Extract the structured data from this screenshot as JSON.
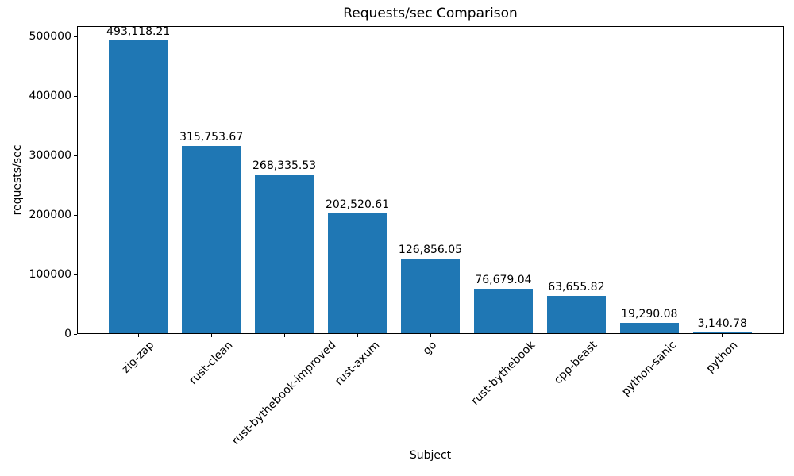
{
  "chart_data": {
    "type": "bar",
    "title": "Requests/sec Comparison",
    "xlabel": "Subject",
    "ylabel": "requests/sec",
    "categories": [
      "zig-zap",
      "rust-clean",
      "rust-bythebook-improved",
      "rust-axum",
      "go",
      "rust-bythebook",
      "cpp-beast",
      "python-sanic",
      "python"
    ],
    "values": [
      493118.21,
      315753.67,
      268335.53,
      202520.61,
      126856.05,
      76679.04,
      63655.82,
      19290.08,
      3140.78
    ],
    "value_labels": [
      "493,118.21",
      "315,753.67",
      "268,335.53",
      "202,520.61",
      "126,856.05",
      "76,679.04",
      "63,655.82",
      "19,290.08",
      "3,140.78"
    ],
    "yticks": [
      0,
      100000,
      200000,
      300000,
      400000,
      500000
    ],
    "ylim": [
      0,
      517774
    ],
    "xlim": [
      -0.84,
      8.84
    ],
    "bar_width": 0.8,
    "bar_color": "#1f77b4",
    "grid": false,
    "legend": null,
    "x_tick_label_rotation_deg": 45
  },
  "colors": {
    "background": "#ffffff",
    "axis": "#000000",
    "text": "#000000"
  }
}
